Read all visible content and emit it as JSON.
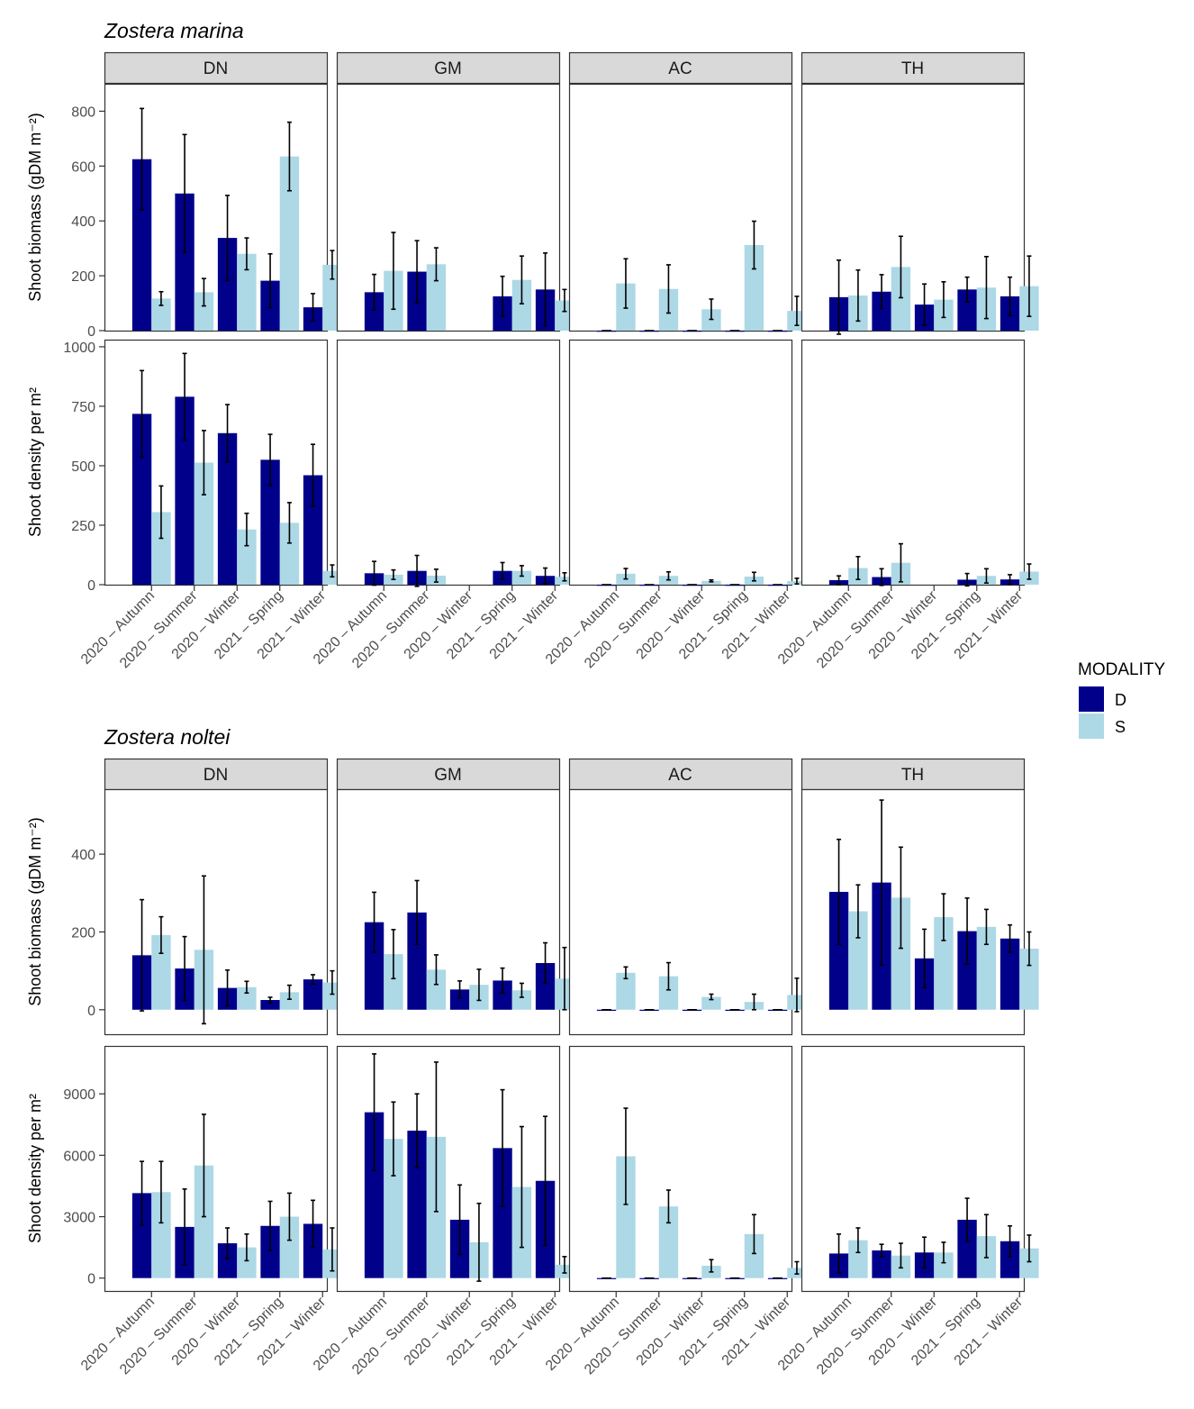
{
  "colors": {
    "D": "#00008B",
    "S": "#ADD8E6",
    "strip_fill": "#D9D9D9",
    "panel_border": "#333333",
    "error_bar": "#000000"
  },
  "legend": {
    "title": "MODALITY",
    "items": [
      "D",
      "S"
    ]
  },
  "chart_data": [
    {
      "type": "bar",
      "title": "Zostera marina",
      "panels": [
        "DN",
        "GM",
        "AC",
        "TH"
      ],
      "categories": [
        "2020 – Autumn",
        "2020 – Summer",
        "2020 – Winter",
        "2021 – Spring",
        "2021 – Winter"
      ],
      "rows": [
        {
          "ylabel": "Shoot biomass (gDM m⁻²)",
          "ylim": [
            0,
            900
          ],
          "yticks": [
            0,
            200,
            400,
            600,
            800
          ],
          "ytick_labels": [
            "0",
            "200",
            "400",
            "600",
            "800"
          ],
          "data": {
            "DN": {
              "D": [
                [
                  625,
                  185
                ],
                [
                  500,
                  215
                ],
                [
                  338,
                  155
                ],
                [
                  182,
                  98
                ],
                [
                  85,
                  50
                ]
              ],
              "S": [
                [
                  117,
                  25
                ],
                [
                  140,
                  50
                ],
                [
                  280,
                  58
                ],
                [
                  635,
                  125
                ],
                [
                  240,
                  52
                ]
              ]
            },
            "GM": {
              "D": [
                [
                  140,
                  65
                ],
                [
                  215,
                  113
                ],
                [
                  null,
                  null
                ],
                [
                  125,
                  73
                ],
                [
                  150,
                  133
                ]
              ],
              "S": [
                [
                  218,
                  140
                ],
                [
                  242,
                  60
                ],
                [
                  null,
                  null
                ],
                [
                  185,
                  87
                ],
                [
                  110,
                  40
                ]
              ]
            },
            "AC": {
              "D": [
                [
                  0,
                  0
                ],
                [
                  0,
                  0
                ],
                [
                  0,
                  0
                ],
                [
                  0,
                  0
                ],
                [
                  0,
                  0
                ]
              ],
              "S": [
                [
                  172,
                  90
                ],
                [
                  152,
                  88
                ],
                [
                  78,
                  37
                ],
                [
                  312,
                  87
                ],
                [
                  72,
                  53
                ]
              ]
            },
            "TH": {
              "D": [
                [
                  122,
                  135
                ],
                [
                  142,
                  62
                ],
                [
                  95,
                  75
                ],
                [
                  150,
                  45
                ],
                [
                  125,
                  70
                ]
              ],
              "S": [
                [
                  128,
                  93
                ],
                [
                  232,
                  112
                ],
                [
                  113,
                  65
                ],
                [
                  157,
                  113
                ],
                [
                  162,
                  110
                ]
              ]
            }
          }
        },
        {
          "ylabel": "Shoot density per m²",
          "ylim": [
            0,
            1030
          ],
          "yticks": [
            0,
            250,
            500,
            750,
            1000
          ],
          "ytick_labels": [
            "0",
            "250",
            "500",
            "750",
            "1000"
          ],
          "data": {
            "DN": {
              "D": [
                [
                  718,
                  182
                ],
                [
                  790,
                  182
                ],
                [
                  637,
                  120
                ],
                [
                  525,
                  107
                ],
                [
                  460,
                  130
                ]
              ],
              "S": [
                [
                  305,
                  110
                ],
                [
                  513,
                  135
                ],
                [
                  232,
                  68
                ],
                [
                  260,
                  85
                ],
                [
                  58,
                  25
                ]
              ]
            },
            "GM": {
              "D": [
                [
                  48,
                  50
                ],
                [
                  58,
                  65
                ],
                [
                  null,
                  null
                ],
                [
                  58,
                  35
                ],
                [
                  37,
                  33
                ]
              ],
              "S": [
                [
                  42,
                  20
                ],
                [
                  38,
                  27
                ],
                [
                  null,
                  null
                ],
                [
                  58,
                  22
                ],
                [
                  33,
                  17
                ]
              ]
            },
            "AC": {
              "D": [
                [
                  0,
                  0
                ],
                [
                  0,
                  0
                ],
                [
                  0,
                  0
                ],
                [
                  0,
                  0
                ],
                [
                  0,
                  0
                ]
              ],
              "S": [
                [
                  46,
                  22
                ],
                [
                  37,
                  17
                ],
                [
                  16,
                  4
                ],
                [
                  34,
                  18
                ],
                [
                  15,
                  12
                ]
              ]
            },
            "TH": {
              "D": [
                [
                  19,
                  18
                ],
                [
                  32,
                  35
                ],
                [
                  null,
                  null
                ],
                [
                  21,
                  26
                ],
                [
                  22,
                  20
                ]
              ],
              "S": [
                [
                  70,
                  48
                ],
                [
                  92,
                  80
                ],
                [
                  null,
                  null
                ],
                [
                  37,
                  30
                ],
                [
                  55,
                  32
                ]
              ]
            }
          }
        }
      ]
    },
    {
      "type": "bar",
      "title": "Zostera noltei",
      "panels": [
        "DN",
        "GM",
        "AC",
        "TH"
      ],
      "categories": [
        "2020 – Autumn",
        "2020 – Summer",
        "2020 – Winter",
        "2021 – Spring",
        "2021 – Winter"
      ],
      "rows": [
        {
          "ylabel": "Shoot biomass (gDM m⁻²)",
          "ylim": [
            -63,
            567
          ],
          "yticks": [
            0,
            200,
            400
          ],
          "ytick_labels": [
            "0",
            "200",
            "400"
          ],
          "data": {
            "DN": {
              "D": [
                [
                  140,
                  143
                ],
                [
                  106,
                  82
                ],
                [
                  56,
                  46
                ],
                [
                  25,
                  7
                ],
                [
                  78,
                  12
                ]
              ],
              "S": [
                [
                  192,
                  47
                ],
                [
                  154,
                  190
                ],
                [
                  58,
                  15
                ],
                [
                  45,
                  18
                ],
                [
                  70,
                  30
                ]
              ]
            },
            "GM": {
              "D": [
                [
                  225,
                  77
                ],
                [
                  250,
                  82
                ],
                [
                  52,
                  22
                ],
                [
                  75,
                  32
                ],
                [
                  120,
                  52
                ]
              ],
              "S": [
                [
                  143,
                  63
                ],
                [
                  103,
                  38
                ],
                [
                  64,
                  40
                ],
                [
                  50,
                  18
                ],
                [
                  80,
                  80
                ]
              ]
            },
            "AC": {
              "D": [
                [
                  0,
                  0
                ],
                [
                  0,
                  0
                ],
                [
                  0,
                  0
                ],
                [
                  0,
                  0
                ],
                [
                  0,
                  0
                ]
              ],
              "S": [
                [
                  95,
                  15
                ],
                [
                  86,
                  35
                ],
                [
                  33,
                  7
                ],
                [
                  20,
                  20
                ],
                [
                  38,
                  43
                ]
              ]
            },
            "TH": {
              "D": [
                [
                  303,
                  135
                ],
                [
                  327,
                  212
                ],
                [
                  132,
                  75
                ],
                [
                  202,
                  85
                ],
                [
                  183,
                  35
                ]
              ],
              "S": [
                [
                  253,
                  68
                ],
                [
                  288,
                  130
                ],
                [
                  238,
                  60
                ],
                [
                  213,
                  45
                ],
                [
                  157,
                  43
                ]
              ]
            }
          }
        },
        {
          "ylabel": "Shoot density per m²",
          "ylim": [
            -630,
            11340
          ],
          "yticks": [
            0,
            3000,
            6000,
            9000
          ],
          "ytick_labels": [
            "0",
            "3000",
            "6000",
            "9000"
          ],
          "data": {
            "DN": {
              "D": [
                [
                  4150,
                  1550
                ],
                [
                  2500,
                  1850
                ],
                [
                  1700,
                  750
                ],
                [
                  2550,
                  1200
                ],
                [
                  2650,
                  1150
                ]
              ],
              "S": [
                [
                  4200,
                  1500
                ],
                [
                  5500,
                  2500
                ],
                [
                  1500,
                  650
                ],
                [
                  3000,
                  1150
                ],
                [
                  1400,
                  1050
                ]
              ]
            },
            "GM": {
              "D": [
                [
                  8100,
                  2850
                ],
                [
                  7200,
                  1800
                ],
                [
                  2850,
                  1700
                ],
                [
                  6350,
                  2850
                ],
                [
                  4750,
                  3150
                ]
              ],
              "S": [
                [
                  6800,
                  1800
                ],
                [
                  6900,
                  3650
                ],
                [
                  1750,
                  1900
                ],
                [
                  4450,
                  2950
                ],
                [
                  650,
                  400
                ]
              ]
            },
            "AC": {
              "D": [
                [
                  0,
                  0
                ],
                [
                  0,
                  0
                ],
                [
                  0,
                  0
                ],
                [
                  0,
                  0
                ],
                [
                  0,
                  0
                ]
              ],
              "S": [
                [
                  5950,
                  2350
                ],
                [
                  3500,
                  800
                ],
                [
                  600,
                  300
                ],
                [
                  2150,
                  950
                ],
                [
                  500,
                  300
                ]
              ]
            },
            "TH": {
              "D": [
                [
                  1200,
                  950
                ],
                [
                  1350,
                  300
                ],
                [
                  1250,
                  750
                ],
                [
                  2850,
                  1050
                ],
                [
                  1800,
                  750
                ]
              ],
              "S": [
                [
                  1850,
                  600
                ],
                [
                  1100,
                  600
                ],
                [
                  1250,
                  500
                ],
                [
                  2050,
                  1050
                ],
                [
                  1450,
                  650
                ]
              ]
            }
          }
        }
      ]
    }
  ]
}
